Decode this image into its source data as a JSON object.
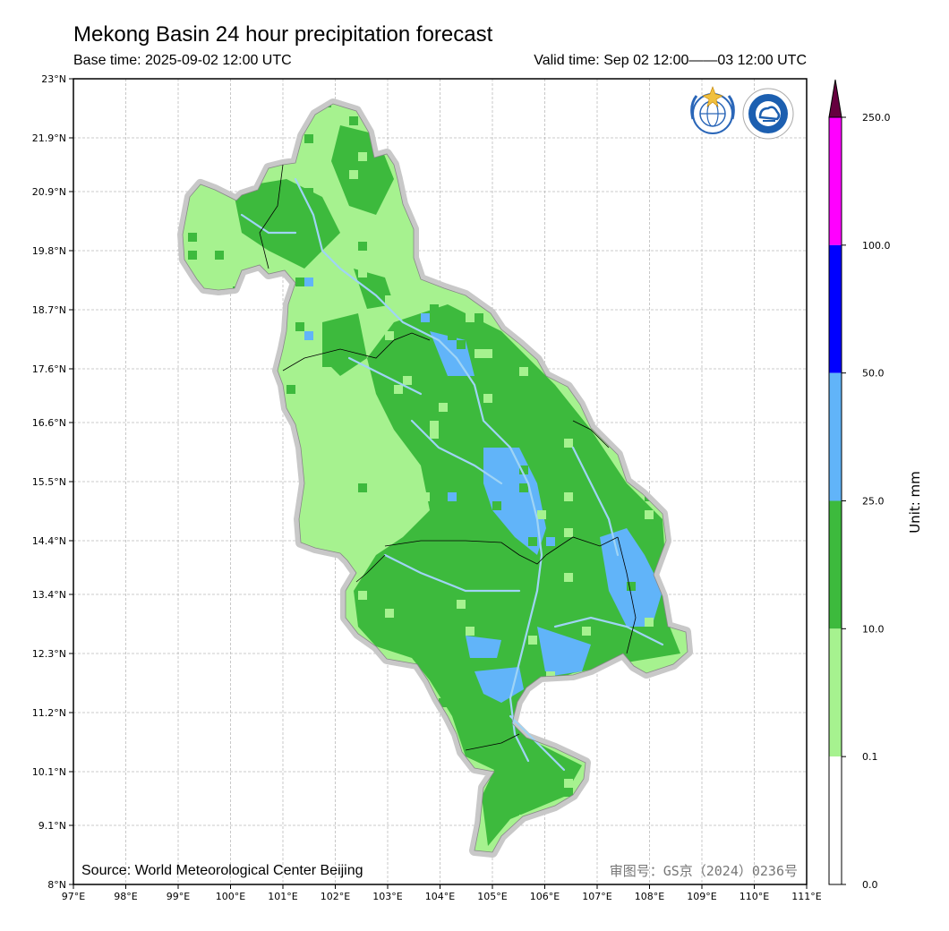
{
  "header": {
    "title": "Mekong Basin 24 hour precipitation forecast",
    "base_time": "Base time: 2025-09-02 12:00 UTC",
    "valid_time": "Valid time: Sep 02 12:00——03 12:00 UTC"
  },
  "map": {
    "lon_labels": [
      "97°E",
      "98°E",
      "99°E",
      "100°E",
      "101°E",
      "102°E",
      "103°E",
      "104°E",
      "105°E",
      "106°E",
      "107°E",
      "108°E",
      "109°E",
      "110°E",
      "111°E"
    ],
    "lat_labels": [
      "23°N",
      "21.9°N",
      "20.9°N",
      "19.8°N",
      "18.7°N",
      "17.6°N",
      "16.6°N",
      "15.5°N",
      "14.4°N",
      "13.4°N",
      "12.3°N",
      "11.2°N",
      "10.1°N",
      "9.1°N",
      "8°N"
    ],
    "source": "Source: World Meteorological Center Beijing",
    "approval": "审图号：GS京（2024）0236号",
    "logos": [
      "wmo-logo",
      "cma-logo"
    ]
  },
  "colorbar": {
    "unit": "Unit: mm",
    "levels": [
      "250.0",
      "100.0",
      "50.0",
      "25.0",
      "10.0",
      "0.1",
      "0.0"
    ],
    "colors": [
      "#ff00ff",
      "#0000ff",
      "#61b4f9",
      "#3dba3d",
      "#a6f28f",
      "#ffffff"
    ],
    "extend_color": "#66003f"
  }
}
